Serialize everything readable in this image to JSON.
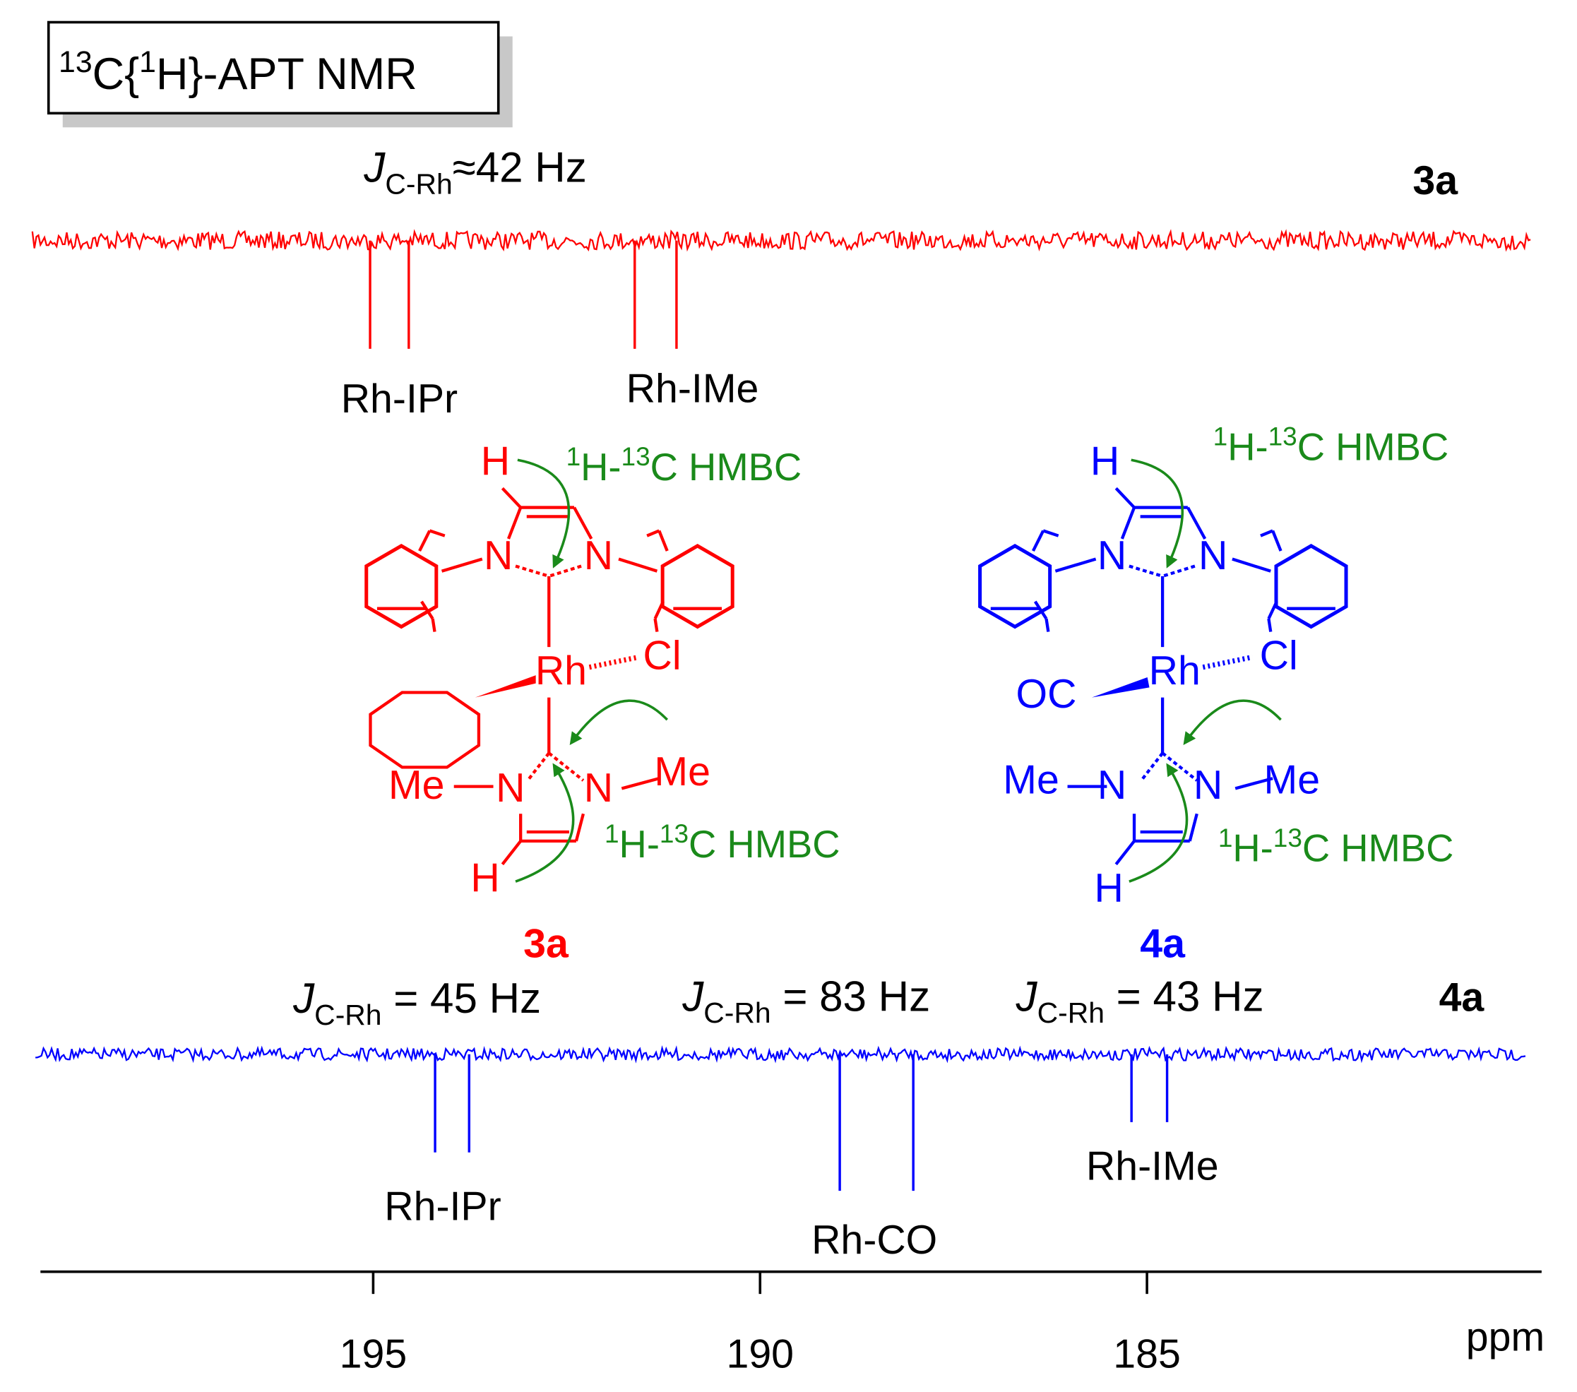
{
  "title": {
    "sup1": "13",
    "mid": "C{",
    "sup2": "1",
    "end": "H}-APT NMR"
  },
  "hmbc": {
    "sup1": "1",
    "mid": "H-",
    "sup2": "13",
    "end": "C HMBC"
  },
  "chart_data": {
    "type": "nmr",
    "x_label": "ppm",
    "xlim": [
      199.3,
      179.9
    ],
    "xticks": [
      195,
      190,
      185
    ],
    "ylim": [
      -140,
      20
    ],
    "series": [
      {
        "name": "3a",
        "color": "#ff0000",
        "peaks": [
          195.04,
          194.54,
          191.62,
          191.08
        ],
        "values": [
          -107,
          -107,
          -107,
          -107
        ],
        "couplings": [
          {
            "symbol": "J",
            "sub": "C-Rh",
            "text": "≈42 Hz"
          }
        ],
        "labels": [
          "Rh-IPr",
          "Rh-IMe"
        ]
      },
      {
        "name": "4a",
        "color": "#0000ff",
        "peaks": [
          194.2,
          193.76,
          188.97,
          188.02,
          185.2,
          184.74
        ],
        "values": [
          -97,
          -97,
          -135,
          -135,
          -67,
          -67
        ],
        "couplings": [
          {
            "symbol": "J",
            "sub": "C-Rh",
            "text": " = 45 Hz"
          },
          {
            "symbol": "J",
            "sub": "C-Rh",
            "text": " = 83 Hz"
          },
          {
            "symbol": "J",
            "sub": "C-Rh",
            "text": " = 43 Hz"
          }
        ],
        "labels": [
          "Rh-IPr",
          "Rh-CO",
          "Rh-IMe"
        ]
      }
    ]
  },
  "structures": [
    {
      "name": "3a",
      "color": "#ff0000",
      "atoms": [
        "H",
        "N",
        "N",
        "Rh",
        "Cl",
        "Me",
        "N",
        "N",
        "Me",
        "H"
      ]
    },
    {
      "name": "4a",
      "color": "#0000ff",
      "atoms": [
        "H",
        "N",
        "N",
        "Rh",
        "Cl",
        "OC",
        "Me",
        "N",
        "N",
        "Me",
        "H"
      ]
    }
  ]
}
